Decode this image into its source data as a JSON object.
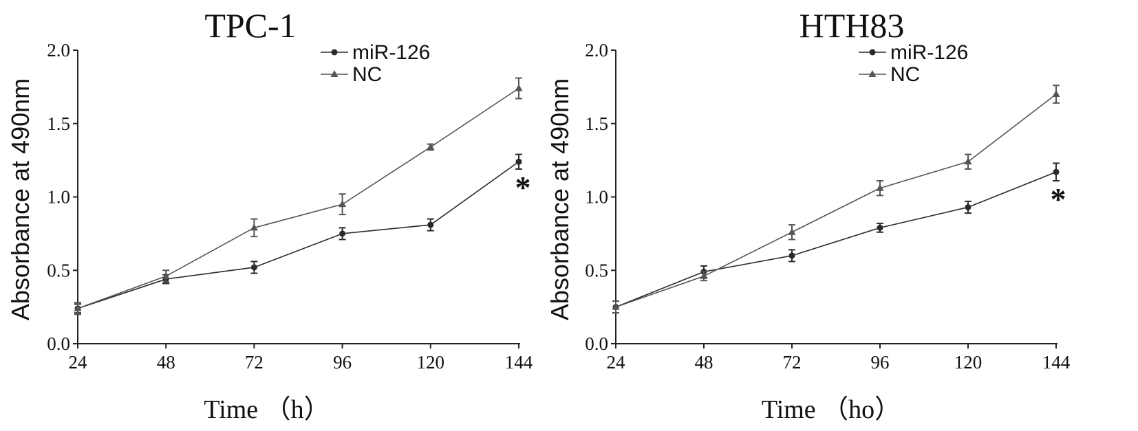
{
  "chart_data": [
    {
      "type": "line",
      "title": "TPC-1",
      "xlabel": "Time （h）",
      "ylabel": "Absorbance at 490nm",
      "x": [
        24,
        48,
        72,
        96,
        120,
        144
      ],
      "x_ticks": [
        "24",
        "48",
        "72",
        "96",
        "120",
        "144"
      ],
      "y_ticks": [
        "0.0",
        "0.5",
        "1.0",
        "1.5",
        "2.0"
      ],
      "xlim": [
        24,
        144
      ],
      "ylim": [
        0,
        2
      ],
      "grid": false,
      "legend_position": "top-right",
      "series": [
        {
          "name": "miR-126",
          "marker": "circle",
          "values": [
            0.24,
            0.44,
            0.52,
            0.75,
            0.81,
            1.24
          ],
          "errors": [
            0.03,
            0.03,
            0.04,
            0.04,
            0.04,
            0.05
          ]
        },
        {
          "name": "NC",
          "marker": "triangle",
          "values": [
            0.24,
            0.46,
            0.79,
            0.95,
            1.34,
            1.74
          ],
          "errors": [
            0.04,
            0.04,
            0.06,
            0.07,
            0.02,
            0.07
          ]
        }
      ],
      "annotations": [
        {
          "text": "*",
          "x": 144
        }
      ]
    },
    {
      "type": "line",
      "title": "HTH83",
      "xlabel": "Time （ho）",
      "ylabel": "Absorbance at 490nm",
      "x": [
        24,
        48,
        72,
        96,
        120,
        144
      ],
      "x_ticks": [
        "24",
        "48",
        "72",
        "96",
        "120",
        "144"
      ],
      "y_ticks": [
        "0.0",
        "0.5",
        "1.0",
        "1.5",
        "2.0"
      ],
      "xlim": [
        24,
        144
      ],
      "ylim": [
        0,
        2
      ],
      "grid": false,
      "legend_position": "top-right",
      "series": [
        {
          "name": "miR-126",
          "marker": "circle",
          "values": [
            0.25,
            0.49,
            0.6,
            0.79,
            0.93,
            1.17
          ],
          "errors": [
            0.04,
            0.04,
            0.04,
            0.03,
            0.04,
            0.06
          ]
        },
        {
          "name": "NC",
          "marker": "triangle",
          "values": [
            0.25,
            0.46,
            0.76,
            1.06,
            1.24,
            1.7
          ],
          "errors": [
            0.04,
            0.03,
            0.05,
            0.05,
            0.05,
            0.06
          ]
        }
      ],
      "annotations": [
        {
          "text": "*",
          "x": 144
        }
      ]
    }
  ],
  "colors": {
    "axis": "#222222",
    "miR-126": "#2a2a2a",
    "NC": "#555555"
  }
}
